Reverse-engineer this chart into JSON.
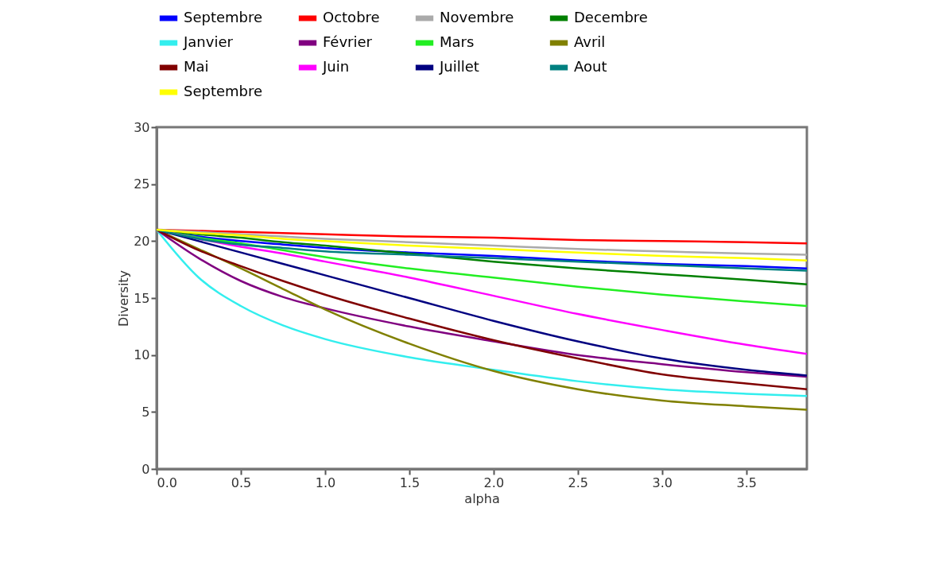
{
  "chart_data": {
    "type": "line",
    "xlabel": "alpha",
    "ylabel": "Diversity",
    "x": [
      0,
      0.25,
      0.5,
      0.75,
      1,
      1.5,
      2,
      2.5,
      3,
      3.5,
      3.86
    ],
    "xlim": [
      0,
      3.86
    ],
    "xticks": [
      {
        "value": 0,
        "label": "0.0"
      },
      {
        "value": 0.5,
        "label": "0.5"
      },
      {
        "value": 1,
        "label": "1.0"
      },
      {
        "value": 1.5,
        "label": "1.5"
      },
      {
        "value": 2,
        "label": "2.0"
      },
      {
        "value": 2.5,
        "label": "2.5"
      },
      {
        "value": 3,
        "label": "3.0"
      },
      {
        "value": 3.5,
        "label": "3.5"
      }
    ],
    "ylim": [
      0,
      30
    ],
    "yticks": [
      0,
      5,
      10,
      15,
      20,
      25,
      30
    ],
    "grid": false,
    "legend": "top",
    "marker": "none",
    "line_style": "solid",
    "series": [
      {
        "name": "Septembre",
        "color": "#0000ff",
        "values": [
          21,
          20.4,
          20.0,
          19.7,
          19.4,
          19.0,
          18.7,
          18.3,
          18.0,
          17.8,
          17.6
        ]
      },
      {
        "name": "Octobre",
        "color": "#ff0000",
        "values": [
          21,
          20.9,
          20.8,
          20.7,
          20.6,
          20.4,
          20.3,
          20.1,
          20.0,
          19.9,
          19.8
        ]
      },
      {
        "name": "Novembre",
        "color": "#aaaaaa",
        "values": [
          21,
          20.8,
          20.6,
          20.4,
          20.2,
          19.9,
          19.6,
          19.3,
          19.1,
          18.9,
          18.8
        ]
      },
      {
        "name": "Decembre",
        "color": "#008000",
        "values": [
          21,
          20.6,
          20.3,
          19.9,
          19.6,
          18.9,
          18.2,
          17.6,
          17.1,
          16.6,
          16.2
        ]
      },
      {
        "name": "Janvier",
        "color": "#33eeee",
        "values": [
          21,
          16.8,
          14.3,
          12.6,
          11.4,
          9.8,
          8.7,
          7.7,
          7.0,
          6.6,
          6.4
        ]
      },
      {
        "name": "Février",
        "color": "#800080",
        "values": [
          21,
          18.5,
          16.5,
          15.1,
          14.1,
          12.5,
          11.2,
          10.0,
          9.2,
          8.5,
          8.1
        ]
      },
      {
        "name": "Mars",
        "color": "#22ee22",
        "values": [
          21,
          20.3,
          19.8,
          19.2,
          18.6,
          17.6,
          16.8,
          16.0,
          15.3,
          14.7,
          14.3
        ]
      },
      {
        "name": "Avril",
        "color": "#808000",
        "values": [
          21,
          19.3,
          17.6,
          15.8,
          14.0,
          11.0,
          8.6,
          7.0,
          6.0,
          5.5,
          5.2
        ]
      },
      {
        "name": "Mai",
        "color": "#800000",
        "values": [
          21,
          19.2,
          17.8,
          16.5,
          15.3,
          13.2,
          11.3,
          9.7,
          8.3,
          7.5,
          7.0
        ]
      },
      {
        "name": "Juin",
        "color": "#ff00ff",
        "values": [
          21,
          20.2,
          19.5,
          18.9,
          18.2,
          16.8,
          15.2,
          13.6,
          12.2,
          10.9,
          10.1
        ]
      },
      {
        "name": "Juillet",
        "color": "#000080",
        "values": [
          21,
          20.0,
          19.0,
          18.0,
          17.0,
          15.0,
          13.0,
          11.2,
          9.7,
          8.7,
          8.2
        ]
      },
      {
        "name": "Aout",
        "color": "#008080",
        "values": [
          21,
          20.2,
          19.7,
          19.4,
          19.1,
          18.8,
          18.5,
          18.2,
          17.9,
          17.6,
          17.4
        ]
      },
      {
        "name": "Septembre",
        "color": "#ffff00",
        "values": [
          21,
          20.7,
          20.5,
          20.2,
          20.0,
          19.6,
          19.3,
          19.0,
          18.7,
          18.5,
          18.3
        ]
      }
    ]
  }
}
